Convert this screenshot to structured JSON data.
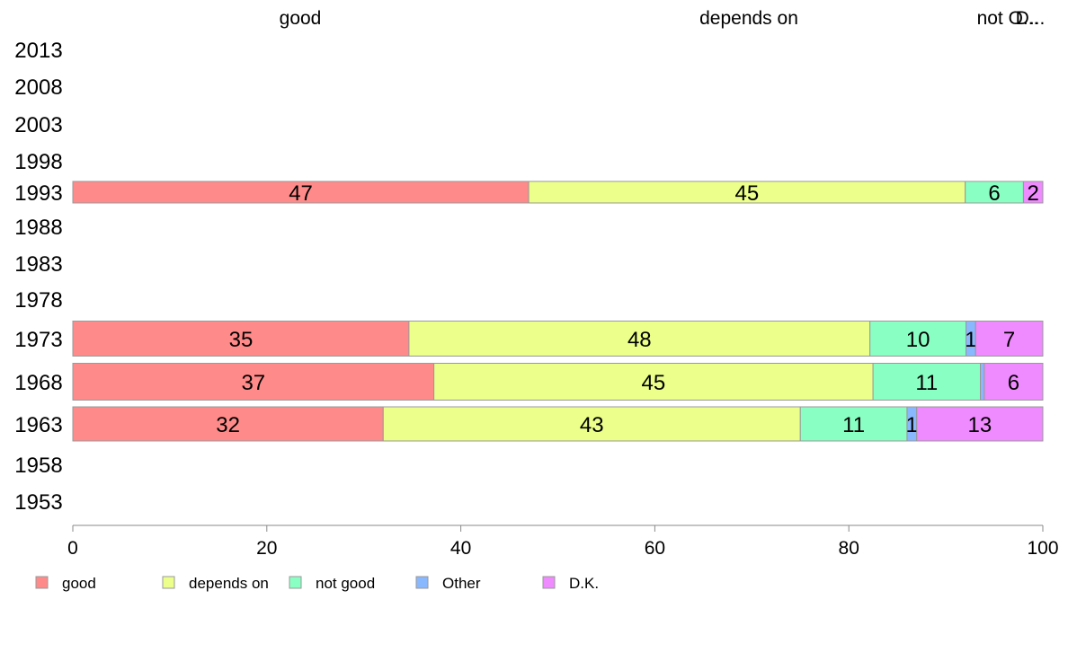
{
  "chart_data": {
    "type": "bar",
    "orientation": "horizontal",
    "stacked": true,
    "categories": [
      "2013",
      "2008",
      "2003",
      "1998",
      "1993",
      "1988",
      "1983",
      "1978",
      "1973",
      "1968",
      "1963",
      "1958",
      "1953"
    ],
    "series": [
      {
        "name": "good",
        "color": "#ff8a8a",
        "values": [
          null,
          null,
          null,
          null,
          47,
          null,
          null,
          null,
          35,
          37,
          32,
          null,
          null
        ]
      },
      {
        "name": "depends on",
        "color": "#ebff8a",
        "values": [
          null,
          null,
          null,
          null,
          45,
          null,
          null,
          null,
          48,
          45,
          43,
          null,
          null
        ]
      },
      {
        "name": "not good",
        "color": "#8affc3",
        "values": [
          null,
          null,
          null,
          null,
          6,
          null,
          null,
          null,
          10,
          11,
          11,
          null,
          null
        ]
      },
      {
        "name": "Other",
        "color": "#8ab8ff",
        "values": [
          null,
          null,
          null,
          null,
          0,
          null,
          null,
          null,
          1,
          0.4,
          1,
          null,
          null
        ]
      },
      {
        "name": "D.K.",
        "color": "#f08aff",
        "values": [
          null,
          null,
          null,
          null,
          2,
          null,
          null,
          null,
          7,
          6,
          13,
          null,
          null
        ]
      }
    ],
    "data_labels": [
      {
        "category": "1993",
        "labels": [
          "47",
          "45",
          "6",
          "",
          "2"
        ]
      },
      {
        "category": "1973",
        "labels": [
          "35",
          "48",
          "10",
          "1",
          "7"
        ]
      },
      {
        "category": "1968",
        "labels": [
          "37",
          "45",
          "11",
          "",
          "6"
        ]
      },
      {
        "category": "1963",
        "labels": [
          "32",
          "43",
          "11",
          "1",
          "13"
        ]
      }
    ],
    "top_labels": [
      "good",
      "depends on",
      "not good",
      "Other",
      "D.K."
    ],
    "top_labels_text": [
      "good",
      "depends on",
      "not  O...",
      "D..."
    ],
    "xlim": [
      0,
      100
    ],
    "xticks": [
      "0",
      "20",
      "40",
      "60",
      "80",
      "100"
    ],
    "legend": [
      "good",
      "depends on",
      "not good",
      "Other",
      "D.K."
    ],
    "legend_position": "bottom-left",
    "grid": false
  }
}
